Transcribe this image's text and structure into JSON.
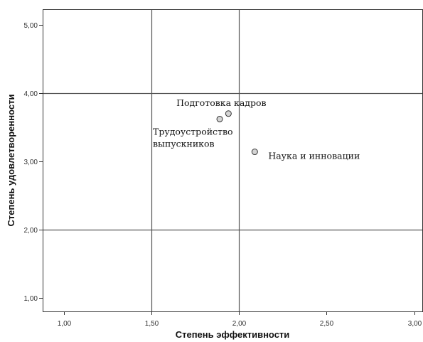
{
  "chart_data": {
    "type": "scatter",
    "title": "",
    "xlabel": "Степень эффективности",
    "ylabel": "Степень удовлетворенности",
    "xlim": [
      0.88,
      3.05
    ],
    "ylim": [
      0.8,
      5.23
    ],
    "x_ticks": [
      1.0,
      1.5,
      2.0,
      2.5,
      3.0
    ],
    "x_tick_labels": [
      "1,00",
      "1,50",
      "2,00",
      "2,50",
      "3,00"
    ],
    "y_ticks": [
      1.0,
      2.0,
      3.0,
      4.0,
      5.0
    ],
    "y_tick_labels": [
      "1,00",
      "2,00",
      "3,00",
      "4,00",
      "5,00"
    ],
    "reference_lines": {
      "x": [
        1.5,
        2.0
      ],
      "y": [
        2.0,
        4.0
      ]
    },
    "points": [
      {
        "label": "Подготовка кадров",
        "x": 1.94,
        "y": 3.7,
        "label_position": "above-left"
      },
      {
        "label": "Трудоустройство выпускников",
        "label_lines": [
          "Трудоустройство",
          "выпускников"
        ],
        "x": 1.89,
        "y": 3.62,
        "label_position": "below-left"
      },
      {
        "label": "Наука и инновации",
        "x": 2.09,
        "y": 3.14,
        "label_position": "right"
      }
    ],
    "grid": false,
    "legend": "none",
    "colors": {
      "marker_fill": "#d4d4d4",
      "marker_stroke": "#333333",
      "reference_line": "#555555",
      "frame": "#333333"
    }
  }
}
